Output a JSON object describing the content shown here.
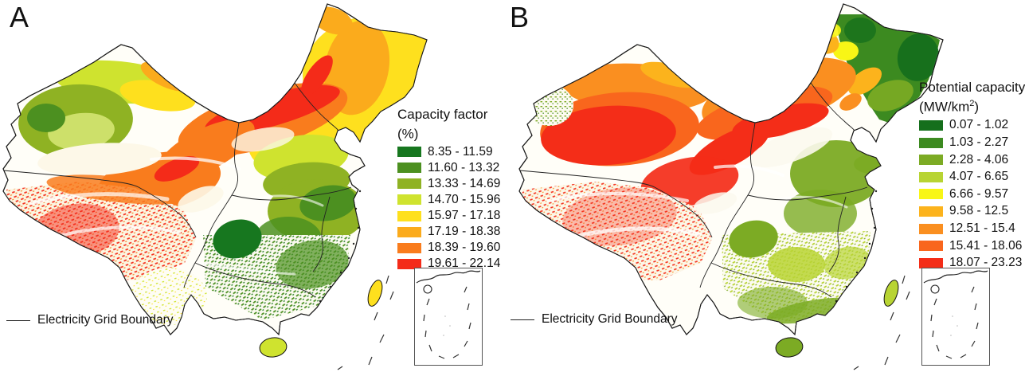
{
  "figure": {
    "background": "#ffffff",
    "panels": [
      {
        "label": "A",
        "legend": {
          "title": "Capacity factor",
          "unit": {
            "pre": "(%)",
            "sup": "",
            "post": ""
          },
          "classes": [
            {
              "color": "#17771f",
              "label": "8.35 - 11.59"
            },
            {
              "color": "#4c9020",
              "label": "11.60 - 13.32"
            },
            {
              "color": "#8fb223",
              "label": "13.33 - 14.69"
            },
            {
              "color": "#cfe32f",
              "label": "14.70 - 15.96"
            },
            {
              "color": "#fee01e",
              "label": "15.97 - 17.18"
            },
            {
              "color": "#fbab1c",
              "label": "17.19 - 18.38"
            },
            {
              "color": "#f97c1d",
              "label": "18.39 - 19.60"
            },
            {
              "color": "#f42b19",
              "label": "19.61 - 22.14"
            }
          ]
        },
        "boundary_label": "Electricity Grid Boundary"
      },
      {
        "label": "B",
        "legend": {
          "title": "Potential capacity",
          "unit": {
            "pre": "(MW/km",
            "sup": "2",
            "post": ")"
          },
          "classes": [
            {
              "color": "#156f1c",
              "label": "0.07 - 1.02"
            },
            {
              "color": "#3c8a20",
              "label": "1.03 - 2.27"
            },
            {
              "color": "#7cab24",
              "label": "2.28 - 4.06"
            },
            {
              "color": "#b8d433",
              "label": "4.07 - 6.65"
            },
            {
              "color": "#f8f616",
              "label": "6.66 - 9.57"
            },
            {
              "color": "#fcb31c",
              "label": "9.58 - 12.5"
            },
            {
              "color": "#fa8f20",
              "label": "12.51 - 15.4"
            },
            {
              "color": "#f9661d",
              "label": "15.41 - 18.06"
            },
            {
              "color": "#f42d18",
              "label": "18.07 - 23.23"
            }
          ]
        },
        "boundary_label": "Electricity Grid Boundary"
      }
    ]
  }
}
